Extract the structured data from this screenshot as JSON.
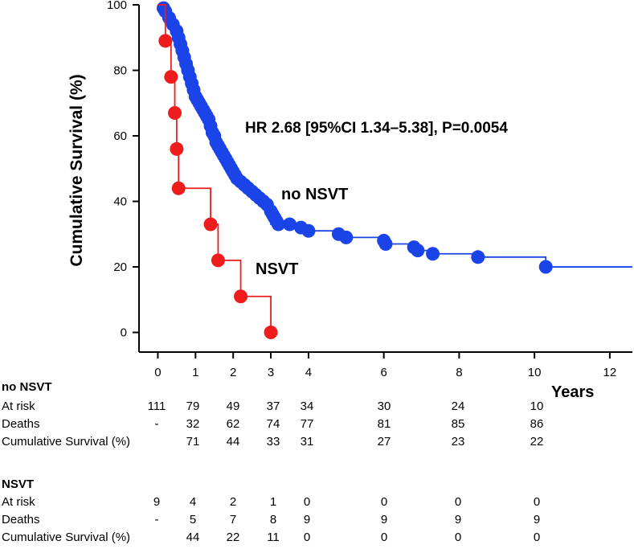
{
  "chart_data": {
    "type": "line",
    "subtype": "kaplan-meier",
    "ylabel": "Cumulative Survival (%)",
    "xlabel": "Years",
    "xlim": [
      -0.5,
      12.6
    ],
    "ylim": [
      -6,
      100
    ],
    "xticks": [
      0,
      1,
      2,
      3,
      4,
      6,
      8,
      10,
      12
    ],
    "yticks": [
      0,
      20,
      40,
      60,
      80,
      100
    ],
    "annotation": "HR 2.68 [95%CI 1.34–5.38], P=0.0054",
    "series": [
      {
        "name": "no NSVT",
        "color": "#1a44e8",
        "steps": [
          [
            0,
            100
          ],
          [
            0.1,
            99
          ],
          [
            0.2,
            97
          ],
          [
            0.3,
            95
          ],
          [
            0.4,
            93
          ],
          [
            0.5,
            91
          ],
          [
            0.6,
            89
          ],
          [
            0.7,
            86
          ],
          [
            0.8,
            82
          ],
          [
            0.9,
            78
          ],
          [
            1.0,
            73
          ],
          [
            1.1,
            70
          ],
          [
            1.2,
            68
          ],
          [
            1.3,
            66
          ],
          [
            1.4,
            64
          ],
          [
            1.5,
            60
          ],
          [
            1.6,
            56
          ],
          [
            1.7,
            54
          ],
          [
            1.8,
            53
          ],
          [
            1.9,
            51
          ],
          [
            2.0,
            48
          ],
          [
            2.1,
            46
          ],
          [
            2.3,
            44
          ],
          [
            2.5,
            42
          ],
          [
            2.7,
            40
          ],
          [
            2.9,
            37
          ],
          [
            3.0,
            33
          ],
          [
            3.5,
            32
          ],
          [
            3.8,
            31
          ],
          [
            4.2,
            31
          ],
          [
            4.8,
            30
          ],
          [
            5.0,
            29
          ],
          [
            6.0,
            27
          ],
          [
            6.8,
            25
          ],
          [
            7.3,
            24
          ],
          [
            8.5,
            23
          ],
          [
            10.3,
            20
          ],
          [
            12.6,
            20
          ]
        ],
        "markers": [
          [
            0.15,
            99
          ],
          [
            0.2,
            98
          ],
          [
            0.3,
            96
          ],
          [
            0.4,
            94
          ],
          [
            0.5,
            92
          ],
          [
            0.55,
            90
          ],
          [
            0.6,
            88
          ],
          [
            0.65,
            86
          ],
          [
            0.7,
            84
          ],
          [
            0.75,
            82
          ],
          [
            0.8,
            80
          ],
          [
            0.85,
            78
          ],
          [
            0.9,
            76
          ],
          [
            0.95,
            74
          ],
          [
            1.0,
            72
          ],
          [
            1.05,
            71
          ],
          [
            1.1,
            70
          ],
          [
            1.15,
            69
          ],
          [
            1.2,
            68
          ],
          [
            1.25,
            67
          ],
          [
            1.3,
            66
          ],
          [
            1.35,
            65
          ],
          [
            1.4,
            63
          ],
          [
            1.45,
            61
          ],
          [
            1.5,
            60
          ],
          [
            1.55,
            58
          ],
          [
            1.6,
            57
          ],
          [
            1.65,
            56
          ],
          [
            1.7,
            55
          ],
          [
            1.75,
            54
          ],
          [
            1.8,
            53
          ],
          [
            1.85,
            52
          ],
          [
            1.9,
            51
          ],
          [
            1.95,
            50
          ],
          [
            2.0,
            49
          ],
          [
            2.05,
            48
          ],
          [
            2.1,
            47
          ],
          [
            2.2,
            46
          ],
          [
            2.3,
            45
          ],
          [
            2.4,
            44
          ],
          [
            2.5,
            43
          ],
          [
            2.6,
            42
          ],
          [
            2.7,
            41
          ],
          [
            2.8,
            40
          ],
          [
            2.9,
            39
          ],
          [
            3.0,
            37
          ],
          [
            3.05,
            36
          ],
          [
            3.1,
            35
          ],
          [
            3.15,
            34
          ],
          [
            3.2,
            33
          ],
          [
            3.5,
            33
          ],
          [
            3.8,
            32
          ],
          [
            4.0,
            31
          ],
          [
            4.8,
            30
          ],
          [
            5.0,
            29
          ],
          [
            6.0,
            28
          ],
          [
            6.05,
            27
          ],
          [
            6.8,
            26
          ],
          [
            6.9,
            25
          ],
          [
            7.3,
            24
          ],
          [
            8.5,
            23
          ],
          [
            10.3,
            20
          ]
        ]
      },
      {
        "name": "NSVT",
        "color": "#ee1c1c",
        "steps": [
          [
            0,
            100
          ],
          [
            0.2,
            89
          ],
          [
            0.35,
            78
          ],
          [
            0.45,
            67
          ],
          [
            0.5,
            56
          ],
          [
            0.55,
            44
          ],
          [
            1.4,
            33
          ],
          [
            1.6,
            22
          ],
          [
            2.2,
            11
          ],
          [
            3.0,
            0
          ]
        ],
        "markers": [
          [
            0.2,
            89
          ],
          [
            0.35,
            78
          ],
          [
            0.45,
            67
          ],
          [
            0.5,
            56
          ],
          [
            0.55,
            44
          ],
          [
            1.4,
            33
          ],
          [
            1.6,
            22
          ],
          [
            2.2,
            11
          ],
          [
            3.0,
            0
          ]
        ]
      }
    ]
  },
  "labels": {
    "no_nsvt_curve": "no NSVT",
    "nsvt_curve": "NSVT"
  },
  "risk_table": {
    "no_nsvt": {
      "title": "no NSVT",
      "rows": [
        {
          "label": "At risk",
          "values": [
            "111",
            "79",
            "49",
            "37",
            "34",
            "30",
            "24",
            "10"
          ]
        },
        {
          "label": "Deaths",
          "values": [
            "-",
            "32",
            "62",
            "74",
            "77",
            "81",
            "85",
            "86"
          ]
        },
        {
          "label": "Cumulative Survival (%)",
          "values": [
            "",
            "71",
            "44",
            "33",
            "31",
            "27",
            "23",
            "22"
          ]
        }
      ]
    },
    "nsvt": {
      "title": "NSVT",
      "rows": [
        {
          "label": "At risk",
          "values": [
            "9",
            "4",
            "2",
            "1",
            "0",
            "0",
            "0",
            "0"
          ]
        },
        {
          "label": "Deaths",
          "values": [
            "-",
            "5",
            "7",
            "8",
            "9",
            "9",
            "9",
            "9"
          ]
        },
        {
          "label": "Cumulative Survival (%)",
          "values": [
            "",
            "44",
            "22",
            "11",
            "0",
            "0",
            "0",
            "0"
          ]
        }
      ]
    }
  }
}
